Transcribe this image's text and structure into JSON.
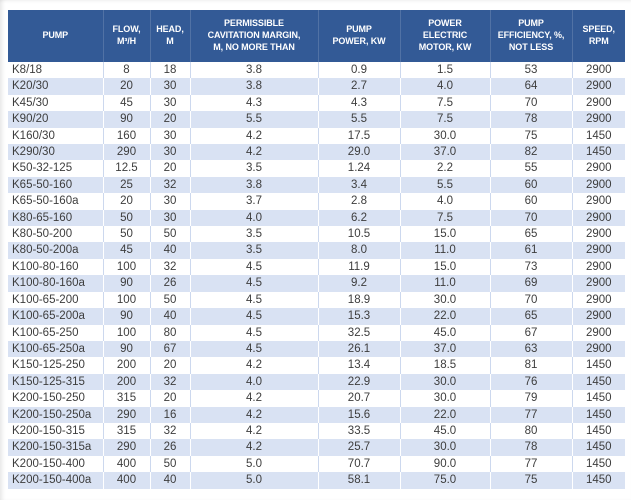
{
  "chart_data": {
    "type": "table",
    "title": "Pump specifications table",
    "columns": [
      {
        "id": "pump",
        "label": "PUMP"
      },
      {
        "id": "flow",
        "label": "FLOW,\nM³/H"
      },
      {
        "id": "head",
        "label": "HEAD,\nM"
      },
      {
        "id": "cavitation",
        "label": "PERMISSIBLE\nCAVITATION MARGIN,\nM, NO MORE THAN"
      },
      {
        "id": "pump_power",
        "label": "PUMP\nPOWER, KW"
      },
      {
        "id": "motor_power",
        "label": "POWER\nELECTRIC\nMOTOR, KW"
      },
      {
        "id": "efficiency",
        "label": "PUMP\nEFFICIENCY, %,\nNOT LESS"
      },
      {
        "id": "speed",
        "label": "SPEED,\nRPM"
      }
    ],
    "rows": [
      [
        "K8/18",
        "8",
        "18",
        "3.8",
        "0.9",
        "1.5",
        "53",
        "2900"
      ],
      [
        "K20/30",
        "20",
        "30",
        "3.8",
        "2.7",
        "4.0",
        "64",
        "2900"
      ],
      [
        "K45/30",
        "45",
        "30",
        "4.3",
        "4.3",
        "7.5",
        "70",
        "2900"
      ],
      [
        "K90/20",
        "90",
        "20",
        "5.5",
        "5.5",
        "7.5",
        "78",
        "2900"
      ],
      [
        "K160/30",
        "160",
        "30",
        "4.2",
        "17.5",
        "30.0",
        "75",
        "1450"
      ],
      [
        "K290/30",
        "290",
        "30",
        "4.2",
        "29.0",
        "37.0",
        "82",
        "1450"
      ],
      [
        "K50-32-125",
        "12.5",
        "20",
        "3.5",
        "1.24",
        "2.2",
        "55",
        "2900"
      ],
      [
        "K65-50-160",
        "25",
        "32",
        "3.8",
        "3.4",
        "5.5",
        "60",
        "2900"
      ],
      [
        "K65-50-160a",
        "20",
        "30",
        "3.7",
        "2.8",
        "4.0",
        "60",
        "2900"
      ],
      [
        "K80-65-160",
        "50",
        "30",
        "4.0",
        "6.2",
        "7.5",
        "70",
        "2900"
      ],
      [
        "K80-50-200",
        "50",
        "50",
        "3.5",
        "10.5",
        "15.0",
        "65",
        "2900"
      ],
      [
        "K80-50-200a",
        "45",
        "40",
        "3.5",
        "8.0",
        "11.0",
        "61",
        "2900"
      ],
      [
        "K100-80-160",
        "100",
        "32",
        "4.5",
        "11.9",
        "15.0",
        "73",
        "2900"
      ],
      [
        "K100-80-160a",
        "90",
        "26",
        "4.5",
        "9.2",
        "11.0",
        "69",
        "2900"
      ],
      [
        "K100-65-200",
        "100",
        "50",
        "4.5",
        "18.9",
        "30.0",
        "70",
        "2900"
      ],
      [
        "K100-65-200a",
        "90",
        "40",
        "4.5",
        "15.3",
        "22.0",
        "65",
        "2900"
      ],
      [
        "K100-65-250",
        "100",
        "80",
        "4.5",
        "32.5",
        "45.0",
        "67",
        "2900"
      ],
      [
        "K100-65-250a",
        "90",
        "67",
        "4.5",
        "26.1",
        "37.0",
        "63",
        "2900"
      ],
      [
        "K150-125-250",
        "200",
        "20",
        "4.2",
        "13.4",
        "18.5",
        "81",
        "1450"
      ],
      [
        "K150-125-315",
        "200",
        "32",
        "4.0",
        "22.9",
        "30.0",
        "76",
        "1450"
      ],
      [
        "K200-150-250",
        "315",
        "20",
        "4.2",
        "20.7",
        "30.0",
        "79",
        "1450"
      ],
      [
        "K200-150-250a",
        "290",
        "16",
        "4.2",
        "15.6",
        "22.0",
        "77",
        "1450"
      ],
      [
        "K200-150-315",
        "315",
        "32",
        "4.2",
        "33.5",
        "45.0",
        "80",
        "1450"
      ],
      [
        "K200-150-315a",
        "290",
        "26",
        "4.2",
        "25.7",
        "30.0",
        "78",
        "1450"
      ],
      [
        "K200-150-400",
        "400",
        "50",
        "5.0",
        "70.7",
        "90.0",
        "77",
        "1450"
      ],
      [
        "K200-150-400a",
        "400",
        "40",
        "5.0",
        "58.1",
        "75.0",
        "75",
        "1450"
      ]
    ],
    "layout_hints": {
      "striped_rows": true,
      "first_data_row_background": "white",
      "grid": "vertical-separators-only"
    }
  },
  "colors": {
    "header_bg": "#335A96",
    "header_text": "#FFFFFF",
    "row_bg": "#FFFFFF",
    "row_alt_bg": "#D9E2F3",
    "cell_text": "#3D3D3D",
    "grid_line": "#CCD8EE"
  }
}
